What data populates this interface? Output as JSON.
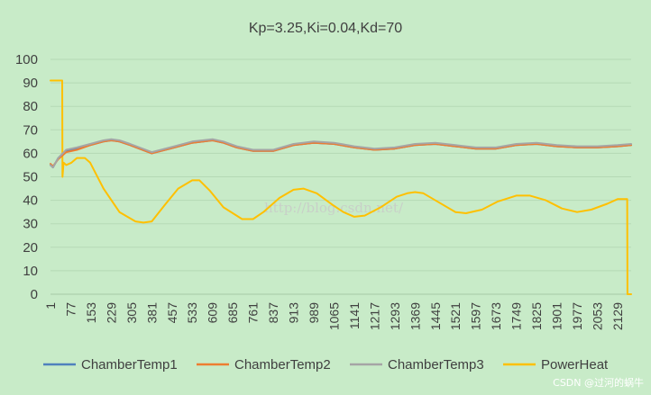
{
  "chart_data": {
    "type": "line",
    "title": "Kp=3.25,Ki=0.04,Kd=70",
    "xlabel": "",
    "ylabel": "",
    "ylim": [
      0,
      100
    ],
    "yticks": [
      0,
      10,
      20,
      30,
      40,
      50,
      60,
      70,
      80,
      90,
      100
    ],
    "xlim": [
      1,
      2180
    ],
    "xticks": [
      1,
      77,
      153,
      229,
      305,
      381,
      457,
      533,
      609,
      685,
      761,
      837,
      913,
      989,
      1065,
      1141,
      1217,
      1293,
      1369,
      1445,
      1521,
      1597,
      1673,
      1749,
      1825,
      1901,
      1977,
      2053,
      2129
    ],
    "grid": "horizontal",
    "legend": "bottom",
    "background": "#c8ebc8",
    "series": [
      {
        "name": "ChamberTemp1",
        "color": "#4f81bd",
        "x": [
          1,
          10,
          30,
          60,
          100,
          150,
          200,
          229,
          260,
          300,
          381,
          450,
          533,
          609,
          650,
          700,
          761,
          837,
          913,
          989,
          1065,
          1141,
          1217,
          1293,
          1369,
          1445,
          1521,
          1597,
          1673,
          1749,
          1825,
          1901,
          1977,
          2053,
          2129,
          2180
        ],
        "y": [
          55,
          54,
          58,
          61,
          62,
          63.5,
          65,
          65.5,
          65,
          63.5,
          60,
          62,
          64.5,
          65.5,
          64.5,
          62.5,
          61,
          61,
          63.5,
          64.5,
          64,
          62.5,
          61.5,
          62,
          63.5,
          64,
          63,
          62,
          62,
          63.5,
          64,
          63,
          62.5,
          62.5,
          63,
          63.5
        ]
      },
      {
        "name": "ChamberTemp2",
        "color": "#ed7d31",
        "x": [
          1,
          10,
          30,
          60,
          100,
          150,
          200,
          229,
          260,
          300,
          381,
          450,
          533,
          609,
          650,
          700,
          761,
          837,
          913,
          989,
          1065,
          1141,
          1217,
          1293,
          1369,
          1445,
          1521,
          1597,
          1673,
          1749,
          1825,
          1901,
          1977,
          2053,
          2129,
          2180
        ],
        "y": [
          55.5,
          54.5,
          57.5,
          60.5,
          61.5,
          63.5,
          65,
          65.5,
          65,
          63.5,
          60,
          62,
          64.5,
          65.5,
          64.5,
          62.5,
          61,
          61,
          63.5,
          64.5,
          64,
          62.5,
          61.5,
          62,
          63.5,
          64,
          63,
          62,
          62,
          63.5,
          64,
          63,
          62.5,
          62.5,
          63,
          63.5
        ]
      },
      {
        "name": "ChamberTemp3",
        "color": "#a5a5a5",
        "x": [
          1,
          10,
          30,
          60,
          100,
          150,
          200,
          229,
          260,
          300,
          381,
          450,
          533,
          609,
          650,
          700,
          761,
          837,
          913,
          989,
          1065,
          1141,
          1217,
          1293,
          1369,
          1445,
          1521,
          1597,
          1673,
          1749,
          1825,
          1901,
          1977,
          2053,
          2129,
          2180
        ],
        "y": [
          55,
          54,
          58,
          61.5,
          62.5,
          64,
          65.5,
          66,
          65.5,
          64,
          60.5,
          62.5,
          65,
          66,
          65,
          63,
          61.5,
          61.5,
          64,
          65,
          64.5,
          63,
          62,
          62.5,
          64,
          64.5,
          63.5,
          62.5,
          62.5,
          64,
          64.5,
          63.5,
          63,
          63,
          63.5,
          64
        ]
      },
      {
        "name": "PowerHeat",
        "color": "#ffc000",
        "x": [
          1,
          45,
          46,
          50,
          60,
          80,
          100,
          130,
          150,
          200,
          260,
          320,
          350,
          381,
          430,
          480,
          533,
          560,
          600,
          650,
          720,
          761,
          800,
          860,
          913,
          950,
          1000,
          1060,
          1100,
          1141,
          1180,
          1240,
          1300,
          1340,
          1369,
          1400,
          1460,
          1521,
          1560,
          1620,
          1680,
          1749,
          1800,
          1860,
          1920,
          1977,
          2030,
          2090,
          2129,
          2165,
          2166,
          2180
        ],
        "y": [
          91,
          91,
          50,
          56,
          55,
          56,
          58,
          58,
          56,
          45,
          35,
          31,
          30.5,
          31,
          38,
          45,
          48.5,
          48.5,
          44,
          37,
          32,
          32,
          35,
          41,
          44.5,
          45,
          43,
          38,
          35,
          33,
          33.5,
          37,
          41.5,
          43,
          43.5,
          43,
          39,
          35,
          34.5,
          36,
          39.5,
          42,
          42,
          40,
          36.5,
          35,
          36,
          38.5,
          40.5,
          40.5,
          0,
          0
        ]
      }
    ]
  },
  "watermark": "http://blog.csdn.net/",
  "credit": "CSDN @过河的蜗牛"
}
